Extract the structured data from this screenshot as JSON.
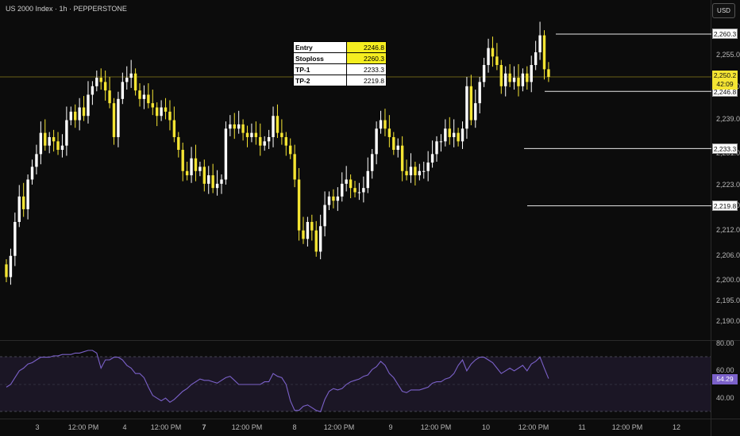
{
  "header": {
    "symbol_line": "US 2000 Index · 1h · PEPPERSTONE",
    "currency_button": "USD"
  },
  "levels_table": [
    {
      "label": "Entry",
      "value": "2246.8",
      "highlight": true
    },
    {
      "label": "Stoploss",
      "value": "2260.3",
      "highlight": true
    },
    {
      "label": "TP-1",
      "value": "2233.3",
      "highlight": false
    },
    {
      "label": "TP-2",
      "value": "2219.8",
      "highlight": false
    }
  ],
  "price_axis": {
    "ticks": [
      "2,255.0",
      "2,247.0",
      "2,239.0",
      "2,231.0",
      "2,223.0",
      "2,218.0",
      "2,212.0",
      "2,206.0",
      "2,200.0",
      "2,195.0",
      "2,190.0"
    ],
    "tags": [
      {
        "label": "2,260.3",
        "price": 2260.3
      },
      {
        "label": "2,246.8",
        "price": 2246.8
      },
      {
        "label": "2,233.3",
        "price": 2233.3
      },
      {
        "label": "2,219.8",
        "price": 2219.8
      }
    ],
    "current": {
      "price_label": "2,250.2",
      "countdown": "42:09",
      "price": 2250.2
    }
  },
  "time_axis": {
    "labels": [
      "3",
      "12:00 PM",
      "4",
      "12:00 PM",
      "7",
      "12:00 PM",
      "8",
      "12:00 PM",
      "9",
      "12:00 PM",
      "10",
      "12:00 PM",
      "11",
      "12:00 PM",
      "12"
    ]
  },
  "rsi": {
    "value_label": "54.29",
    "ticks": [
      "80.00",
      "60.00",
      "40.00"
    ],
    "upper": 70,
    "lower": 30
  },
  "colors": {
    "bull": "#ffffff",
    "bear": "#f5e533",
    "rsi_line": "#7b61c9",
    "rsi_band": "#1b1625",
    "background": "#0c0c0c"
  },
  "chart_data": {
    "type": "candlestick",
    "symbol": "US 2000 Index",
    "interval": "1h",
    "price_range": [
      2185,
      2266
    ],
    "closes": [
      2203,
      2208,
      2216,
      2222,
      2219,
      2226,
      2229,
      2232,
      2237,
      2234,
      2236,
      2235,
      2233,
      2234,
      2240,
      2242,
      2240,
      2243,
      2241,
      2246,
      2248,
      2250,
      2249,
      2247,
      2244,
      2236,
      2245,
      2249,
      2250,
      2251,
      2247,
      2245,
      2246,
      2244,
      2243,
      2241,
      2243,
      2242,
      2240,
      2236,
      2233,
      2228,
      2227,
      2231,
      2228,
      2229,
      2225,
      2227,
      2224,
      2225,
      2226,
      2238,
      2239,
      2238,
      2239,
      2237,
      2236,
      2237,
      2236,
      2234,
      2235,
      2236,
      2241,
      2237,
      2236,
      2234,
      2232,
      2226,
      2214,
      2212,
      2216,
      2214,
      2209,
      2215,
      2220,
      2222,
      2221,
      2222,
      2225,
      2226,
      2224,
      2223,
      2223,
      2224,
      2228,
      2232,
      2238,
      2240,
      2238,
      2236,
      2233,
      2234,
      2228,
      2227,
      2229,
      2227,
      2228,
      2228,
      2230,
      2232,
      2235,
      2235,
      2238,
      2236,
      2237,
      2235,
      2238,
      2248,
      2240,
      2244,
      2249,
      2253,
      2257,
      2255,
      2253,
      2248,
      2251,
      2249,
      2250,
      2248,
      2251,
      2249,
      2253,
      2256,
      2260,
      2252,
      2250.2
    ],
    "rsi": [
      48,
      50,
      55,
      60,
      62,
      65,
      66,
      68,
      70,
      70,
      70,
      71,
      71,
      72,
      72,
      72,
      73,
      73,
      74,
      75,
      75,
      73,
      62,
      68,
      68,
      70,
      70,
      68,
      64,
      62,
      58,
      58,
      55,
      48,
      42,
      40,
      38,
      40,
      37,
      39,
      42,
      45,
      47,
      50,
      52,
      54,
      53,
      53,
      52,
      51,
      53,
      55,
      56,
      53,
      50,
      50,
      50,
      50,
      50,
      50,
      52,
      52,
      58,
      56,
      55,
      50,
      38,
      31,
      31,
      34,
      35,
      33,
      31,
      30,
      39,
      45,
      47,
      46,
      47,
      50,
      52,
      53,
      54,
      56,
      57,
      61,
      63,
      67,
      64,
      58,
      55,
      50,
      45,
      44,
      46,
      46,
      46,
      47,
      48,
      51,
      52,
      52,
      54,
      55,
      58,
      64,
      68,
      60,
      65,
      68,
      70,
      70,
      68,
      66,
      62,
      58,
      60,
      62,
      60,
      62,
      64,
      60,
      65,
      67,
      70,
      62,
      54.29
    ]
  }
}
